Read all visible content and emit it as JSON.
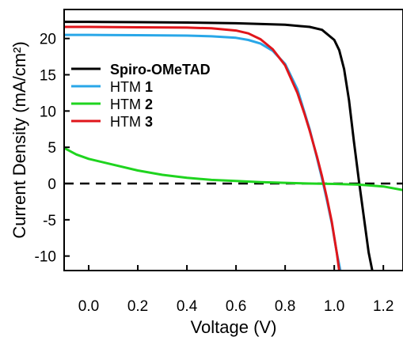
{
  "chart_data": {
    "type": "line",
    "xlabel": "Voltage (V)",
    "ylabel": "Current Density (mA/cm²)",
    "xlim": [
      -0.1,
      1.28
    ],
    "ylim": [
      -12,
      24
    ],
    "x_ticks": [
      0.0,
      0.2,
      0.4,
      0.6,
      0.8,
      1.0,
      1.2
    ],
    "x_tick_labels": [
      "0.0",
      "0.2",
      "0.4",
      "0.6",
      "0.8",
      "1.0",
      "1.2"
    ],
    "y_ticks": [
      -10,
      -5,
      0,
      5,
      10,
      15,
      20
    ],
    "y_tick_labels": [
      "-10",
      "-5",
      "0",
      "5",
      "10",
      "15",
      "20"
    ],
    "grid": false,
    "legend_position": "top-left",
    "zero_line": {
      "y": 0,
      "style": "dashed",
      "color": "#000000"
    },
    "series": [
      {
        "name": "Spiro-OMeTAD",
        "legend": [
          "Spiro-OMeTAD",
          ""
        ],
        "legend_bold": true,
        "color": "#000000",
        "x": [
          -0.1,
          0.0,
          0.2,
          0.4,
          0.6,
          0.8,
          0.9,
          0.95,
          1.0,
          1.02,
          1.04,
          1.06,
          1.08,
          1.1,
          1.12,
          1.14,
          1.155
        ],
        "y": [
          22.3,
          22.3,
          22.25,
          22.2,
          22.1,
          21.9,
          21.6,
          21.2,
          19.8,
          18.4,
          15.8,
          11.5,
          5.8,
          0.5,
          -4.5,
          -9.5,
          -12
        ]
      },
      {
        "name": "HTM 1",
        "legend": [
          "HTM ",
          "1"
        ],
        "legend_bold": false,
        "color": "#29a7e8",
        "x": [
          -0.1,
          0.0,
          0.2,
          0.4,
          0.5,
          0.6,
          0.65,
          0.7,
          0.75,
          0.8,
          0.85,
          0.9,
          0.93,
          0.95,
          0.97,
          0.99,
          1.01,
          1.025
        ],
        "y": [
          20.5,
          20.5,
          20.45,
          20.4,
          20.3,
          20.1,
          19.8,
          19.3,
          18.3,
          16.5,
          13.0,
          7.5,
          3.5,
          0.7,
          -2.3,
          -5.5,
          -9.5,
          -12
        ]
      },
      {
        "name": "HTM 2",
        "legend": [
          "HTM ",
          "2"
        ],
        "legend_bold": false,
        "color": "#1fd41f",
        "x": [
          -0.1,
          -0.05,
          0.0,
          0.1,
          0.2,
          0.3,
          0.4,
          0.5,
          0.6,
          0.7,
          0.8,
          0.9,
          1.0,
          1.1,
          1.2,
          1.28
        ],
        "y": [
          4.9,
          4.0,
          3.4,
          2.6,
          1.8,
          1.2,
          0.8,
          0.5,
          0.35,
          0.2,
          0.1,
          0.0,
          -0.05,
          -0.15,
          -0.4,
          -0.9
        ]
      },
      {
        "name": "HTM 3",
        "legend": [
          "HTM ",
          "3"
        ],
        "legend_bold": false,
        "color": "#e0161b",
        "x": [
          -0.1,
          0.0,
          0.2,
          0.4,
          0.5,
          0.6,
          0.65,
          0.7,
          0.75,
          0.8,
          0.85,
          0.88,
          0.9,
          0.93,
          0.95,
          0.97,
          0.99,
          1.01,
          1.02
        ],
        "y": [
          21.6,
          21.6,
          21.55,
          21.5,
          21.4,
          21.1,
          20.7,
          19.9,
          18.5,
          16.3,
          12.5,
          9.5,
          7.3,
          3.7,
          1.0,
          -2.0,
          -5.3,
          -9.5,
          -12
        ]
      }
    ]
  }
}
